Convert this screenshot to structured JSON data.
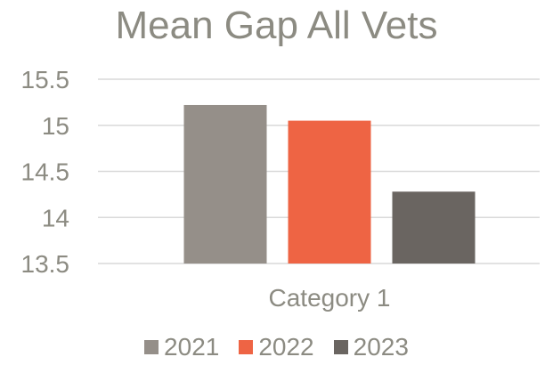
{
  "chart_data": {
    "type": "bar",
    "title": "Mean Gap All Vets",
    "categories": [
      "Category 1"
    ],
    "series": [
      {
        "name": "2021",
        "values": [
          15.22
        ],
        "color": "#958f89"
      },
      {
        "name": "2022",
        "values": [
          15.05
        ],
        "color": "#ee6444"
      },
      {
        "name": "2023",
        "values": [
          14.28
        ],
        "color": "#6a6561"
      }
    ],
    "ylim": [
      13.5,
      15.5
    ],
    "yticks": [
      13.5,
      14,
      14.5,
      15,
      15.5
    ],
    "ytick_labels": [
      "13.5",
      "14",
      "14.5",
      "15",
      "15.5"
    ],
    "grid": true,
    "legend_position": "bottom"
  }
}
